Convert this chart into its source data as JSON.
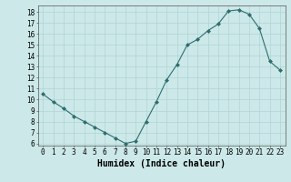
{
  "x": [
    0,
    1,
    2,
    3,
    4,
    5,
    6,
    7,
    8,
    9,
    10,
    11,
    12,
    13,
    14,
    15,
    16,
    17,
    18,
    19,
    20,
    21,
    22,
    23
  ],
  "y": [
    10.5,
    9.8,
    9.2,
    8.5,
    8.0,
    7.5,
    7.0,
    6.5,
    6.0,
    6.2,
    8.0,
    9.8,
    11.8,
    13.2,
    15.0,
    15.5,
    16.3,
    16.9,
    18.1,
    18.2,
    17.8,
    16.5,
    13.5,
    12.7
  ],
  "xlabel": "Humidex (Indice chaleur)",
  "xlim": [
    -0.5,
    23.5
  ],
  "ylim": [
    5.8,
    18.6
  ],
  "yticks": [
    6,
    7,
    8,
    9,
    10,
    11,
    12,
    13,
    14,
    15,
    16,
    17,
    18
  ],
  "xticks": [
    0,
    1,
    2,
    3,
    4,
    5,
    6,
    7,
    8,
    9,
    10,
    11,
    12,
    13,
    14,
    15,
    16,
    17,
    18,
    19,
    20,
    21,
    22,
    23
  ],
  "line_color": "#2e6e6e",
  "marker": "D",
  "marker_size": 2.0,
  "bg_color": "#cce8e8",
  "grid_color": "#b0d4d4",
  "tick_fontsize": 5.5,
  "xlabel_fontsize": 7.0
}
